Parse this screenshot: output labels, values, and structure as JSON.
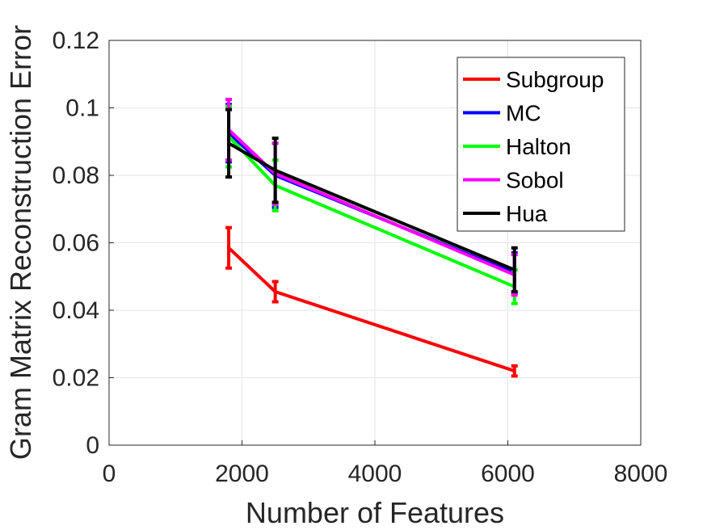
{
  "chart_data": {
    "type": "line",
    "title": "",
    "xlabel": "Number of Features",
    "ylabel": "Gram Matrix Reconstruction Error",
    "xlim": [
      0,
      8000
    ],
    "ylim": [
      0,
      0.12
    ],
    "xticks": [
      0,
      2000,
      4000,
      6000,
      8000
    ],
    "xtick_labels": [
      "0",
      "2000",
      "4000",
      "6000",
      "8000"
    ],
    "yticks": [
      0,
      0.02,
      0.04,
      0.06,
      0.08,
      0.1,
      0.12
    ],
    "ytick_labels": [
      "0",
      "0.02",
      "0.04",
      "0.06",
      "0.08",
      "0.1",
      "0.12"
    ],
    "grid": true,
    "legend_position": "top-right",
    "x": [
      1800,
      2500,
      6100
    ],
    "series": [
      {
        "name": "Subgroup",
        "color": "#ff0000",
        "values": [
          0.0585,
          0.0455,
          0.022
        ],
        "error": [
          0.006,
          0.003,
          0.0015
        ]
      },
      {
        "name": "MC",
        "color": "#0000ff",
        "values": [
          0.0925,
          0.08,
          0.051
        ],
        "error": [
          0.0085,
          0.0095,
          0.006
        ]
      },
      {
        "name": "Halton",
        "color": "#00ff00",
        "values": [
          0.0915,
          0.077,
          0.047
        ],
        "error": [
          0.009,
          0.0075,
          0.005
        ]
      },
      {
        "name": "Sobol",
        "color": "#ff00ff",
        "values": [
          0.0935,
          0.0805,
          0.0505
        ],
        "error": [
          0.009,
          0.009,
          0.006
        ]
      },
      {
        "name": "Hua",
        "color": "#000000",
        "values": [
          0.0895,
          0.0815,
          0.052
        ],
        "error": [
          0.01,
          0.0095,
          0.0065
        ]
      }
    ]
  }
}
